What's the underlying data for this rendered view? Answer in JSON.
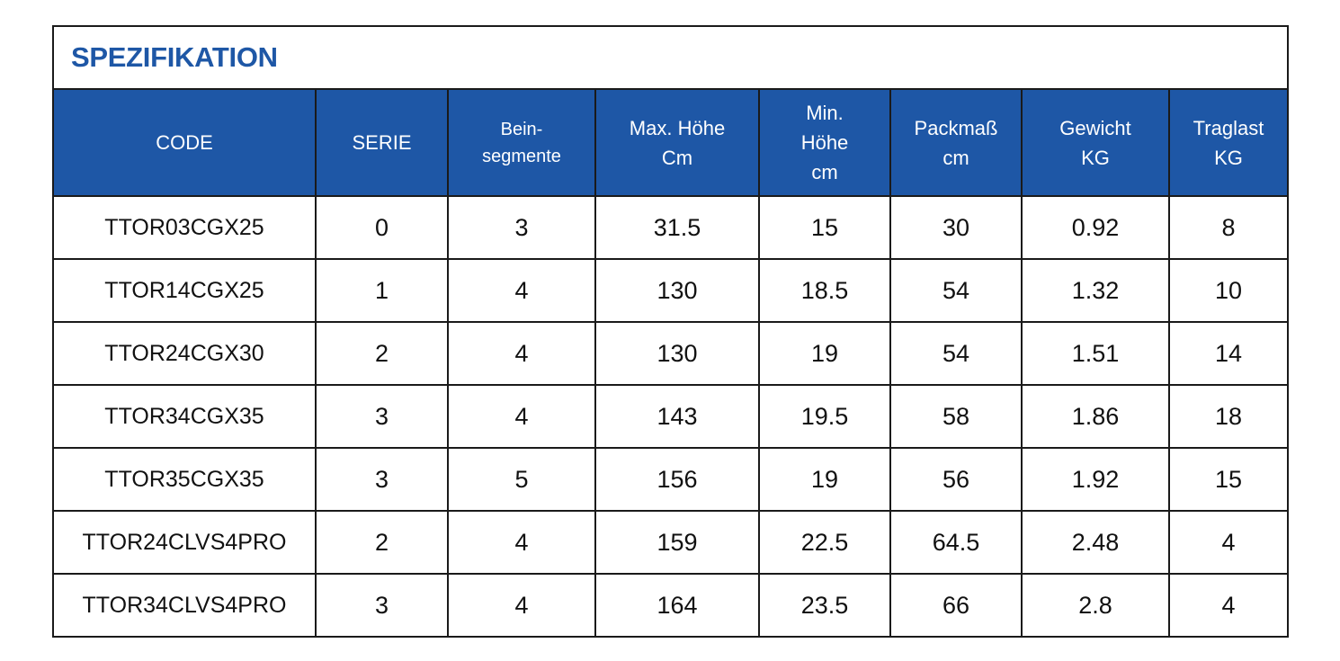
{
  "title": "SPEZIFIKATION",
  "colors": {
    "header_bg": "#1e57a6",
    "title_text": "#1e57a6",
    "header_text": "#ffffff",
    "border": "#1a1a1a"
  },
  "columns": [
    {
      "lines": [
        "CODE"
      ]
    },
    {
      "lines": [
        "SERIE"
      ]
    },
    {
      "lines": [
        "Bein-",
        "segmente"
      ]
    },
    {
      "lines": [
        "Max. Höhe",
        "Cm"
      ]
    },
    {
      "lines": [
        "Min.",
        "Höhe",
        "cm"
      ]
    },
    {
      "lines": [
        "Packmaß",
        "cm"
      ]
    },
    {
      "lines": [
        "Gewicht",
        "KG"
      ]
    },
    {
      "lines": [
        "Traglast",
        "KG"
      ]
    }
  ],
  "rows": [
    [
      "TTOR03CGX25",
      "0",
      "3",
      "31.5",
      "15",
      "30",
      "0.92",
      "8"
    ],
    [
      "TTOR14CGX25",
      "1",
      "4",
      "130",
      "18.5",
      "54",
      "1.32",
      "10"
    ],
    [
      "TTOR24CGX30",
      "2",
      "4",
      "130",
      "19",
      "54",
      "1.51",
      "14"
    ],
    [
      "TTOR34CGX35",
      "3",
      "4",
      "143",
      "19.5",
      "58",
      "1.86",
      "18"
    ],
    [
      "TTOR35CGX35",
      "3",
      "5",
      "156",
      "19",
      "56",
      "1.92",
      "15"
    ],
    [
      "TTOR24CLVS4PRO",
      "2",
      "4",
      "159",
      "22.5",
      "64.5",
      "2.48",
      "4"
    ],
    [
      "TTOR34CLVS4PRO",
      "3",
      "4",
      "164",
      "23.5",
      "66",
      "2.8",
      "4"
    ]
  ]
}
